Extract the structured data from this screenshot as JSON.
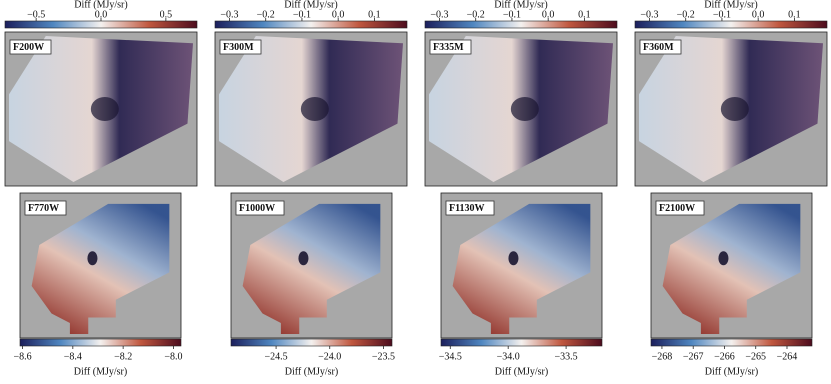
{
  "chart_data": [
    {
      "type": "image",
      "label": "F200W",
      "colorbar_label": "Diff (MJy/sr)",
      "clim": [
        -0.74,
        0.74
      ],
      "cticks": [
        {
          "value": -0.5,
          "label": "−0.5"
        },
        {
          "value": 0,
          "label": "0.0"
        },
        0.5
      ],
      "cmap": [
        "#1c1f5c",
        "#4f86c0",
        "#f4f1ef",
        "#c0573f",
        "#4d0c1e"
      ]
    },
    {
      "type": "image",
      "label": "F300M",
      "colorbar_label": "Diff (MJy/sr)",
      "clim": [
        -0.34,
        0.19
      ],
      "cticks": [
        {
          "value": -0.3,
          "label": "−0.3"
        },
        {
          "value": -0.2,
          "label": "−0.2"
        },
        {
          "value": -0.1,
          "label": "−0.1"
        },
        {
          "value": 0,
          "label": "0.0"
        },
        0.1
      ],
      "cmap": [
        "#1c1f5c",
        "#4f86c0",
        "#f4f1ef",
        "#c0573f",
        "#4d0c1e"
      ]
    },
    {
      "type": "image",
      "label": "F335M",
      "colorbar_label": "Diff (MJy/sr)",
      "clim": [
        -0.34,
        0.19
      ],
      "cticks": [
        {
          "value": -0.3,
          "label": "−0.3"
        },
        {
          "value": -0.2,
          "label": "−0.2"
        },
        {
          "value": -0.1,
          "label": "−0.1"
        },
        {
          "value": 0,
          "label": "0.0"
        },
        0.1
      ],
      "cmap": [
        "#1c1f5c",
        "#4f86c0",
        "#f4f1ef",
        "#c0573f",
        "#4d0c1e"
      ]
    },
    {
      "type": "image",
      "label": "F360M",
      "colorbar_label": "Diff (MJy/sr)",
      "clim": [
        -0.34,
        0.19
      ],
      "cticks": [
        {
          "value": -0.3,
          "label": "−0.3"
        },
        {
          "value": -0.2,
          "label": "−0.2"
        },
        {
          "value": -0.1,
          "label": "−0.1"
        },
        {
          "value": 0,
          "label": "0.0"
        },
        0.1
      ],
      "cmap": [
        "#1c1f5c",
        "#4f86c0",
        "#f4f1ef",
        "#c0573f",
        "#4d0c1e"
      ]
    },
    {
      "type": "image",
      "label": "F770W",
      "colorbar_label": "Diff (MJy/sr)",
      "clim": [
        -8.61,
        -7.97
      ],
      "cticks": [
        {
          "value": -8.6,
          "label": "−8.6"
        },
        {
          "value": -8.4,
          "label": "−8.4"
        },
        {
          "value": -8.2,
          "label": "−8.2"
        },
        {
          "value": -8.0,
          "label": "−8.0"
        }
      ],
      "cmap": [
        "#1c1f5c",
        "#4f86c0",
        "#f4f1ef",
        "#c0573f",
        "#4d0c1e"
      ]
    },
    {
      "type": "image",
      "label": "F1000W",
      "colorbar_label": "Diff (MJy/sr)",
      "clim": [
        -24.92,
        -23.42
      ],
      "cticks": [
        {
          "value": -24.5,
          "label": "−24.5"
        },
        {
          "value": -24.0,
          "label": "−24.0"
        },
        {
          "value": -23.5,
          "label": "−23.5"
        }
      ],
      "cmap": [
        "#1c1f5c",
        "#4f86c0",
        "#f4f1ef",
        "#c0573f",
        "#4d0c1e"
      ]
    },
    {
      "type": "image",
      "label": "F1130W",
      "colorbar_label": "Diff (MJy/sr)",
      "clim": [
        -34.58,
        -33.19
      ],
      "cticks": [
        {
          "value": -34.5,
          "label": "−34.5"
        },
        {
          "value": -34.0,
          "label": "−34.0"
        },
        {
          "value": -33.5,
          "label": "−33.5"
        }
      ],
      "cmap": [
        "#1c1f5c",
        "#4f86c0",
        "#f4f1ef",
        "#c0573f",
        "#4d0c1e"
      ]
    },
    {
      "type": "image",
      "label": "F2100W",
      "colorbar_label": "Diff (MJy/sr)",
      "clim": [
        -268.35,
        -263.2
      ],
      "cticks": [
        {
          "value": -268,
          "label": "−268"
        },
        {
          "value": -267,
          "label": "−267"
        },
        {
          "value": -266,
          "label": "−266"
        },
        {
          "value": -265,
          "label": "−265"
        },
        {
          "value": -264,
          "label": "−264"
        }
      ],
      "cmap": [
        "#1c1f5c",
        "#4f86c0",
        "#f4f1ef",
        "#c0573f",
        "#4d0c1e"
      ]
    }
  ]
}
